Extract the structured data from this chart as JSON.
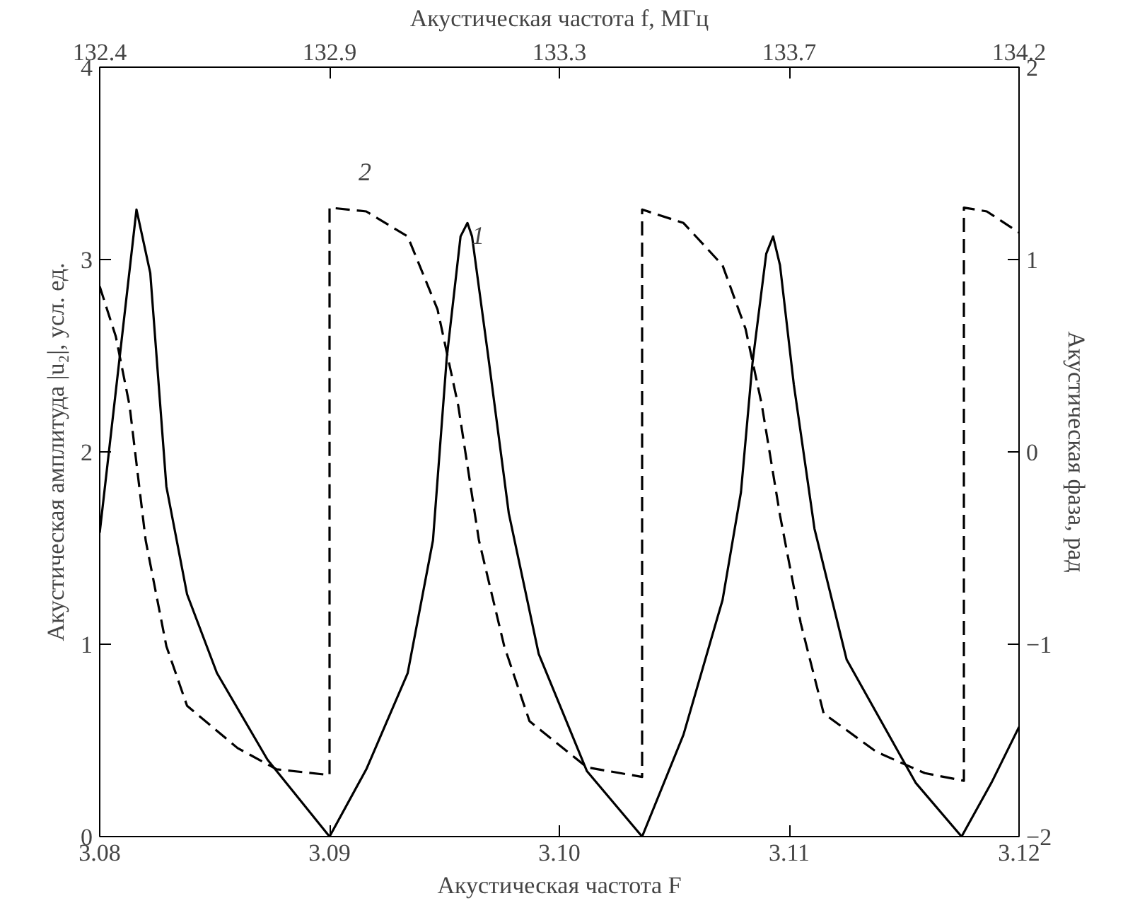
{
  "chart_data": {
    "type": "line",
    "xlabel": "Акустическая частота F",
    "x2label": "Акустическая частота f, МГц",
    "ylabel": "Акустическая амплитуда |u₂|, усл. ед.",
    "y2label": "Акустическая фаза, рад",
    "xlim": [
      3.08,
      3.12
    ],
    "xticks": [
      3.08,
      3.09,
      {
        "value": 3.1,
        "label": "3.10"
      },
      3.11,
      3.12
    ],
    "x2lim": [
      132.44,
      134.16
    ],
    "x2ticks": [
      {
        "value": 132.44,
        "label": "132.4"
      },
      {
        "value": 132.87,
        "label": "132.9"
      },
      {
        "value": 133.3,
        "label": "133.3"
      },
      {
        "value": 133.73,
        "label": "133.7"
      },
      {
        "value": 134.16,
        "label": "134.2"
      }
    ],
    "ylim": [
      0,
      4
    ],
    "yticks": [
      0,
      1,
      2,
      3,
      4
    ],
    "y2lim": [
      -2,
      2
    ],
    "y2ticks": [
      -2,
      -1,
      0,
      1,
      2
    ],
    "grid": false,
    "marker": "none",
    "series": [
      {
        "color": "#000000",
        "line_style": "solid",
        "x": [
          3.08,
          3.0816,
          3.0822,
          3.0829,
          3.0838,
          3.0851,
          3.0873,
          3.09,
          3.0916,
          3.0934,
          3.0945,
          3.0951,
          3.0957,
          3.096,
          3.0962,
          3.0969,
          3.0978,
          3.0991,
          3.1012,
          3.1036,
          3.1054,
          3.1071,
          3.1079,
          3.1084,
          3.109,
          3.1093,
          3.1096,
          3.1102,
          3.1111,
          3.1125,
          3.1155,
          3.1175,
          3.1188,
          3.12
        ],
        "values": [
          1.58,
          3.26,
          2.93,
          1.82,
          1.26,
          0.85,
          0.4,
          0,
          0.35,
          0.85,
          1.54,
          2.49,
          3.12,
          3.19,
          3.12,
          2.5,
          1.68,
          0.95,
          0.34,
          0,
          0.53,
          1.23,
          1.79,
          2.46,
          3.03,
          3.12,
          2.97,
          2.35,
          1.6,
          0.92,
          0.28,
          0,
          0.28,
          0.57
        ]
      },
      {
        "color": "#000000",
        "line_style": "dashed",
        "axis": "y2",
        "x": [
          3.08,
          3.0807,
          3.0813,
          3.082,
          3.0829,
          3.0838,
          3.086,
          3.0877,
          3.09,
          3.09,
          3.0916,
          3.0934,
          3.0947,
          3.0956,
          3.0965,
          3.0976,
          3.0987,
          3.1012,
          3.1036,
          3.1036,
          3.1054,
          3.1071,
          3.1081,
          3.1088,
          3.1096,
          3.1105,
          3.1115,
          3.1138,
          3.1159,
          3.1176,
          3.1176,
          3.1186,
          3.12
        ],
        "values": [
          0.86,
          0.6,
          0.24,
          -0.46,
          -1.01,
          -1.32,
          -1.54,
          -1.65,
          -1.68,
          1.27,
          1.25,
          1.12,
          0.74,
          0.24,
          -0.46,
          -1.01,
          -1.4,
          -1.64,
          -1.69,
          1.26,
          1.19,
          0.97,
          0.64,
          0.25,
          -0.33,
          -0.89,
          -1.36,
          -1.56,
          -1.67,
          -1.71,
          1.27,
          1.25,
          1.14
        ]
      }
    ],
    "annotations": [
      "1",
      "2"
    ]
  }
}
